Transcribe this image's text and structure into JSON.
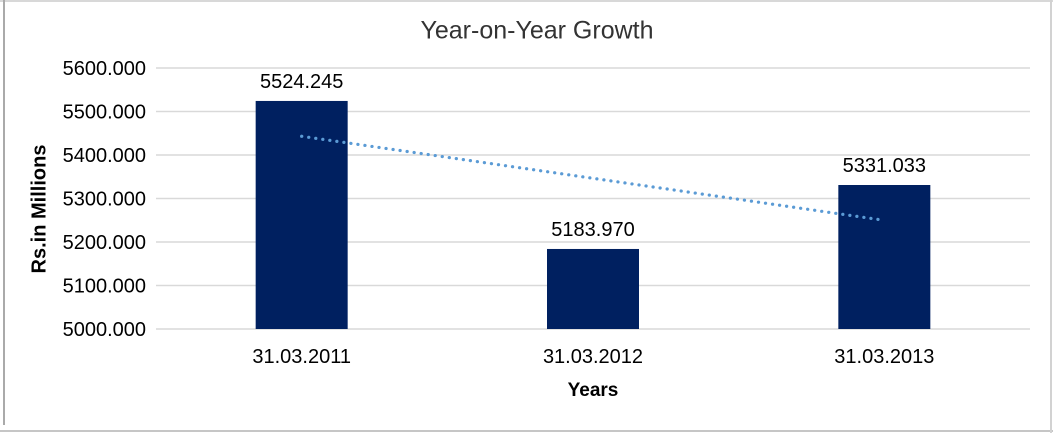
{
  "frame": {
    "background": "#FFFFFF",
    "border_color": "#D4D4D4"
  },
  "chart_data": {
    "type": "bar",
    "title": "Year-on-Year Growth",
    "categories": [
      "31.03.2011",
      "31.03.2012",
      "31.03.2013"
    ],
    "values": [
      5524.245,
      5183.97,
      5331.033
    ],
    "data_labels": [
      "5524.245",
      "5183.970",
      "5331.033"
    ],
    "x_axis": {
      "label": "Years"
    },
    "y_axis": {
      "label": "Rs.in Millions",
      "min": 5000,
      "max": 5600,
      "step": 100,
      "ticks": [
        "5600.000",
        "5500.000",
        "5400.000",
        "5300.000",
        "5200.000",
        "5100.000",
        "5000.000"
      ]
    },
    "ylim": [
      5000,
      5600
    ],
    "grid": true,
    "legend": "none",
    "trendline": {
      "type": "linear",
      "style": "dotted",
      "start_value": 5443.0,
      "end_value": 5249.8,
      "color": "#5B9BD5"
    },
    "colors": {
      "bar": "#002060",
      "gridline": "#D9D9D9",
      "title_text": "#333333",
      "label_text": "#000000"
    }
  }
}
